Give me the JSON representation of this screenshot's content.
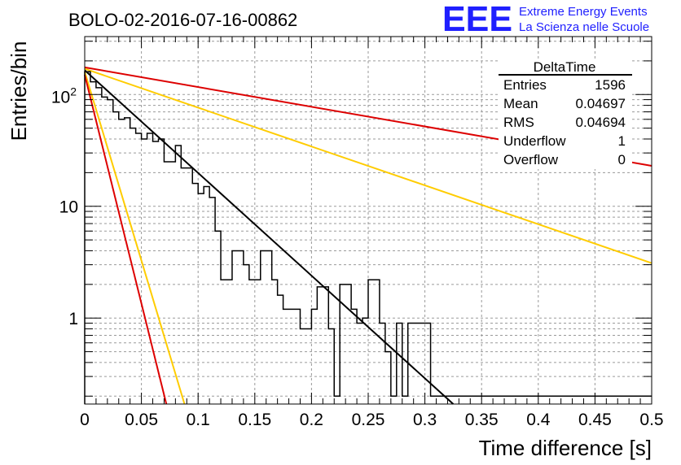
{
  "chart_data": {
    "type": "histogram",
    "title": "BOLO-02-2016-07-16-00862",
    "xlabel": "Time difference [s]",
    "ylabel": "Entries/bin",
    "xlim": [
      0,
      0.5
    ],
    "ylim": [
      0.17,
      330
    ],
    "y_scale": "log",
    "grid": true,
    "x_ticks": [
      {
        "value": 0,
        "label": "0"
      },
      {
        "value": 0.05,
        "label": "0.05"
      },
      {
        "value": 0.1,
        "label": "0.1"
      },
      {
        "value": 0.15,
        "label": "0.15"
      },
      {
        "value": 0.2,
        "label": "0.2"
      },
      {
        "value": 0.25,
        "label": "0.25"
      },
      {
        "value": 0.3,
        "label": "0.3"
      },
      {
        "value": 0.35,
        "label": "0.35"
      },
      {
        "value": 0.4,
        "label": "0.4"
      },
      {
        "value": 0.45,
        "label": "0.45"
      },
      {
        "value": 0.5,
        "label": "0.5"
      }
    ],
    "y_ticks": [
      {
        "value": 1,
        "label": "1"
      },
      {
        "value": 10,
        "label": "10"
      },
      {
        "value": 100,
        "label": "10",
        "exponent": "2"
      }
    ],
    "histogram": {
      "color": "#000000",
      "bin_width": 0.005,
      "values": [
        160,
        130,
        115,
        95,
        90,
        70,
        60,
        62,
        50,
        45,
        40,
        45,
        38,
        40,
        25,
        25,
        35,
        22,
        22,
        16,
        13,
        15,
        12,
        6,
        2.2,
        2.2,
        4,
        4,
        3,
        2.2,
        2.2,
        4,
        4,
        2.2,
        1.6,
        1.2,
        1.2,
        1.2,
        0.8,
        0.8,
        1.2,
        1.9,
        1.9,
        0.8,
        0.2,
        2.0,
        2.0,
        1.2,
        0.9,
        1.0,
        2.2,
        2.2,
        0.9,
        0.5,
        0.2,
        0.9,
        0.2,
        0.9,
        0.9,
        0.9,
        0.9,
        0.2,
        0.2,
        0.2,
        0.2,
        0.2,
        0.2,
        0.2,
        0.2,
        0.2,
        0.2,
        0.2,
        0.2,
        0.2,
        0.2,
        0.2,
        0.2,
        0.2,
        0.2,
        0.2,
        0.2,
        0.2,
        0.2,
        0.2,
        0.2,
        0.2,
        0.2,
        0.2,
        0.2,
        0.2,
        0.2,
        0.2,
        0.2,
        0.2,
        0.2,
        0.2,
        0.2,
        0.2,
        0.2,
        0.2
      ]
    },
    "curves": [
      {
        "color": "#000000",
        "x_range": [
          0,
          0.325
        ],
        "y_start": 165,
        "y_end": 0.168
      },
      {
        "color": "#dd0000",
        "x_range": [
          0,
          0.5
        ],
        "y_start": 175,
        "y_end": 23
      },
      {
        "color": "#ffcc00",
        "x_range": [
          0,
          0.5
        ],
        "y_start": 170,
        "y_end": 3.1
      },
      {
        "color": "#ffcc00",
        "x_range": [
          0,
          0.088
        ],
        "y_start": 160,
        "y_end": 0.17
      },
      {
        "color": "#dd0000",
        "x_range": [
          0,
          0.072
        ],
        "y_start": 150,
        "y_end": 0.17
      }
    ],
    "stats_box": {
      "title": "DeltaTime",
      "rows": [
        {
          "label": "Entries",
          "value": "1596"
        },
        {
          "label": "Mean",
          "value": "0.04697"
        },
        {
          "label": "RMS",
          "value": "0.04694"
        },
        {
          "label": "Underflow",
          "value": "1"
        },
        {
          "label": "Overflow",
          "value": "0"
        }
      ]
    },
    "logo": {
      "mark": "EEE",
      "line1": "Extreme Energy Events",
      "line2": "La Scienza nelle Scuole",
      "color": "#1f1fff"
    }
  }
}
